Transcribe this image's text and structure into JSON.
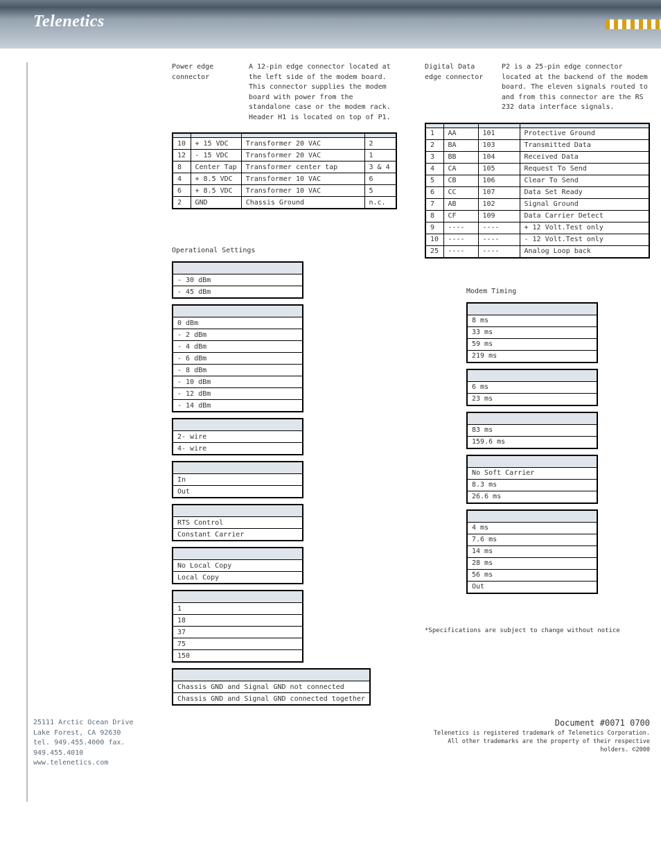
{
  "brand": "Telenetics",
  "address": {
    "line1": "25111 Arctic Ocean Drive",
    "line2": "Lake Forest, CA 92630",
    "line3": "tel. 949.455.4000  fax. 949.455.4010",
    "line4": "www.telenetics.com"
  },
  "power": {
    "label": "Power edge connector",
    "desc": "A 12-pin edge connector located at the left side of the modem board. This connector supplies the modem board with power from the standalone case or the modem rack. Header H1 is located on top of P1.",
    "rows": [
      [
        "10",
        "+ 15 VDC",
        "Transformer 20 VAC",
        "2"
      ],
      [
        "12",
        "- 15 VDC",
        "Transformer 20 VAC",
        "1"
      ],
      [
        "8",
        "Center Tap",
        "Transformer center tap",
        "3 & 4"
      ],
      [
        "4",
        "+ 8.5 VDC",
        "Transformer 10 VAC",
        "6"
      ],
      [
        "6",
        "+ 8.5 VDC",
        "Transformer 10 VAC",
        "5"
      ],
      [
        "2",
        "GND",
        "Chassis Ground",
        "n.c."
      ]
    ]
  },
  "digital": {
    "label": "Digital Data edge connector",
    "desc": "P2 is a 25-pin edge connector located at the backend of the modem board. The eleven signals routed to and from this connector are the RS 232 data interface signals.",
    "rows": [
      [
        "1",
        "AA",
        "101",
        "Protective Ground"
      ],
      [
        "2",
        "BA",
        "103",
        "Transmitted Data"
      ],
      [
        "3",
        "BB",
        "104",
        "Received Data"
      ],
      [
        "4",
        "CA",
        "105",
        "Request To Send"
      ],
      [
        "5",
        "CB",
        "106",
        "Clear To Send"
      ],
      [
        "6",
        "CC",
        "107",
        "Data Set Ready"
      ],
      [
        "7",
        "AB",
        "102",
        "Signal Ground"
      ],
      [
        "8",
        "CF",
        "109",
        "Data Carrier Detect"
      ],
      [
        "9",
        "----",
        "----",
        "+ 12 Volt.Test only"
      ],
      [
        "10",
        "----",
        "----",
        "- 12 Volt.Test only"
      ],
      [
        "25",
        "----",
        "----",
        "Analog Loop back"
      ]
    ]
  },
  "op": {
    "title": "Operational Settings",
    "groups": [
      {
        "h": "",
        "rows": [
          "- 30 dBm",
          "- 45 dBm"
        ]
      },
      {
        "h": "",
        "rows": [
          "0 dBm",
          "- 2 dBm",
          "- 4 dBm",
          "- 6 dBm",
          "- 8 dBm",
          "- 10 dBm",
          "- 12 dBm",
          "- 14 dBm"
        ]
      },
      {
        "h": "",
        "rows": [
          "2- wire",
          "4- wire"
        ]
      },
      {
        "h": "",
        "rows": [
          "In",
          "Out"
        ]
      },
      {
        "h": "",
        "rows": [
          "RTS Control",
          "Constant Carrier"
        ]
      },
      {
        "h": "",
        "rows": [
          "No Local Copy",
          "Local Copy"
        ]
      },
      {
        "h": "",
        "rows": [
          "1",
          "18",
          "37",
          "75",
          "150"
        ]
      },
      {
        "h": "",
        "rows": [
          "Chassis GND and Signal GND not connected",
          "Chassis GND and Signal GND connected together"
        ],
        "wide": true
      }
    ]
  },
  "timing": {
    "title": "Modem Timing",
    "groups": [
      {
        "h": "",
        "rows": [
          "8 ms",
          "33 ms",
          "59 ms",
          "219 ms"
        ]
      },
      {
        "h": "",
        "rows": [
          "6 ms",
          "23 ms"
        ]
      },
      {
        "h": "",
        "rows": [
          "83 ms",
          "159.6 ms"
        ]
      },
      {
        "h": "",
        "rows": [
          "No Soft Carrier",
          "8.3 ms",
          "26.6 ms"
        ]
      },
      {
        "h": "",
        "rows": [
          "4 ms",
          "7.6 ms",
          "14 ms",
          "28 ms",
          "56 ms",
          "Out"
        ]
      }
    ]
  },
  "specnote": "*Specifications are subject to change without notice",
  "footer": {
    "docno": "Document #0071 0700",
    "line1": "Telenetics is registered trademark of Telenetics Corporation.",
    "line2": "All other trademarks are the property of their respective holders. ©2000"
  }
}
